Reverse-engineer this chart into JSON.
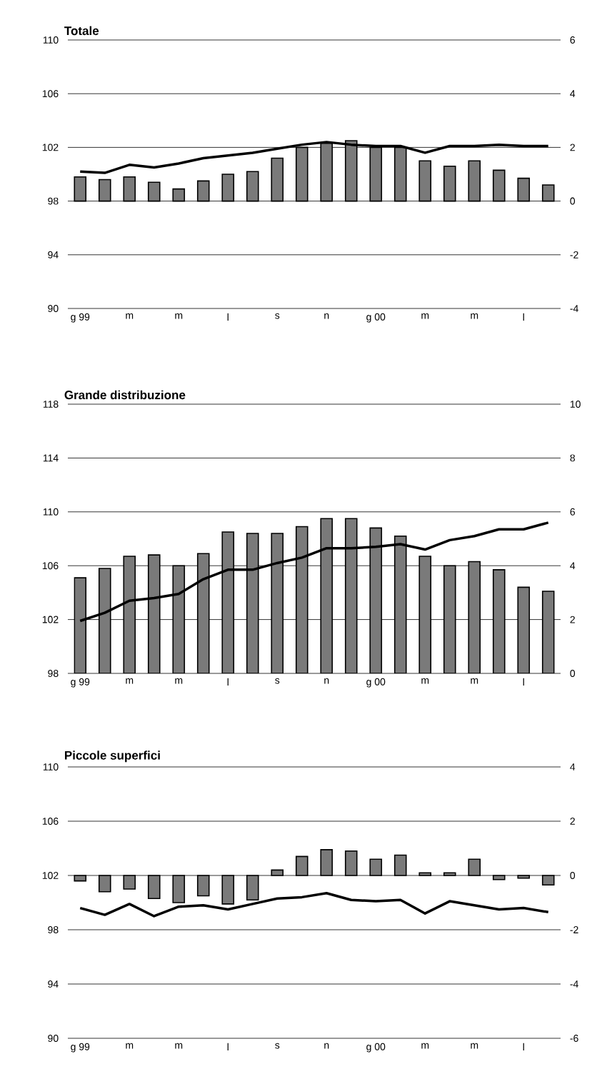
{
  "chart_data": [
    {
      "type": "bar",
      "title": "Totale",
      "categories": [
        "g 99",
        null,
        "m",
        null,
        "m",
        null,
        "l",
        null,
        "s",
        null,
        "n",
        null,
        "g 00",
        null,
        "m",
        null,
        "m",
        null,
        "l",
        null
      ],
      "series": [
        {
          "type": "bar",
          "axis": "y2",
          "color": "#7a7a7a",
          "values": [
            0.9,
            0.8,
            0.9,
            0.7,
            0.45,
            0.75,
            1.0,
            1.1,
            1.6,
            2.0,
            2.15,
            2.25,
            2.0,
            2.0,
            1.5,
            1.3,
            1.5,
            1.15,
            0.85,
            0.6
          ]
        },
        {
          "type": "line",
          "color": "#000000",
          "values": [
            100.2,
            100.1,
            100.7,
            100.5,
            100.8,
            101.2,
            101.4,
            101.6,
            101.9,
            102.2,
            102.4,
            102.2,
            102.1,
            102.1,
            101.6,
            102.1,
            102.1,
            102.2,
            102.1,
            102.1
          ]
        }
      ],
      "ylim": [
        90,
        110
      ],
      "yticks": [
        90,
        94,
        98,
        102,
        106,
        110
      ],
      "y2lim": [
        -4,
        6
      ],
      "y2ticks": [
        -4,
        -2,
        0,
        2,
        4,
        6
      ],
      "grid": "y"
    },
    {
      "type": "bar",
      "title": "Grande distribuzione",
      "categories": [
        "g 99",
        null,
        "m",
        null,
        "m",
        null,
        "l",
        null,
        "s",
        null,
        "n",
        null,
        "g 00",
        null,
        "m",
        null,
        "m",
        null,
        "l",
        null
      ],
      "series": [
        {
          "type": "bar",
          "axis": "y2",
          "color": "#7a7a7a",
          "values": [
            3.55,
            3.9,
            4.35,
            4.4,
            4.0,
            4.45,
            5.25,
            5.2,
            5.2,
            5.45,
            5.75,
            5.75,
            5.4,
            5.1,
            4.35,
            4.0,
            4.15,
            3.85,
            3.2,
            3.05
          ]
        },
        {
          "type": "line",
          "color": "#000000",
          "values": [
            101.9,
            102.5,
            103.4,
            103.6,
            103.9,
            105.0,
            105.7,
            105.7,
            106.2,
            106.6,
            107.3,
            107.3,
            107.4,
            107.6,
            107.2,
            107.9,
            108.2,
            108.7,
            108.7,
            109.2
          ]
        }
      ],
      "ylim": [
        98,
        118
      ],
      "yticks": [
        98,
        102,
        106,
        110,
        114,
        118
      ],
      "y2lim": [
        0,
        10
      ],
      "y2ticks": [
        0,
        2,
        4,
        6,
        8,
        10
      ],
      "grid": "y"
    },
    {
      "type": "bar",
      "title": "Piccole superfici",
      "categories": [
        "g 99",
        null,
        "m",
        null,
        "m",
        null,
        "l",
        null,
        "s",
        null,
        "n",
        null,
        "g 00",
        null,
        "m",
        null,
        "m",
        null,
        "l",
        null
      ],
      "series": [
        {
          "type": "bar",
          "axis": "y2",
          "color": "#7a7a7a",
          "values": [
            -0.2,
            -0.6,
            -0.5,
            -0.85,
            -1.0,
            -0.75,
            -1.05,
            -0.9,
            0.2,
            0.7,
            0.95,
            0.9,
            0.6,
            0.75,
            0.1,
            0.1,
            0.6,
            -0.15,
            -0.1,
            -0.35
          ]
        },
        {
          "type": "line",
          "color": "#000000",
          "values": [
            99.6,
            99.1,
            99.9,
            99.0,
            99.7,
            99.8,
            99.5,
            99.9,
            100.3,
            100.4,
            100.7,
            100.2,
            100.1,
            100.2,
            99.2,
            100.1,
            99.8,
            99.5,
            99.6,
            99.3
          ]
        }
      ],
      "ylim": [
        90,
        110
      ],
      "yticks": [
        90,
        94,
        98,
        102,
        106,
        110
      ],
      "y2lim": [
        -6,
        4
      ],
      "y2ticks": [
        -6,
        -4,
        -2,
        0,
        2,
        4
      ],
      "grid": "y"
    }
  ]
}
